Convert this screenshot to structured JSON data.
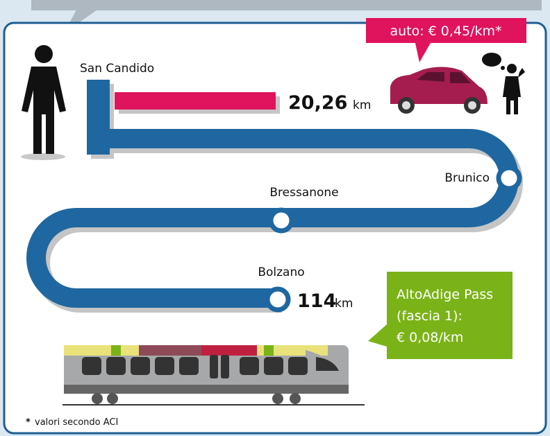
{
  "car": {
    "cost": "auto: € 0,45/km*"
  },
  "route": {
    "start": "San Candido",
    "car_distance": "20,26",
    "car_unit": "km",
    "stops": [
      "Brunico",
      "Bressanone",
      "Bolzano"
    ],
    "train_distance": "114",
    "train_unit": "km"
  },
  "pass": {
    "lines": [
      "AltoAdige Pass",
      "(fascia 1):",
      "€ 0,08/km"
    ]
  },
  "footnote": {
    "mark": "*",
    "text": "valori secondo ACI"
  }
}
